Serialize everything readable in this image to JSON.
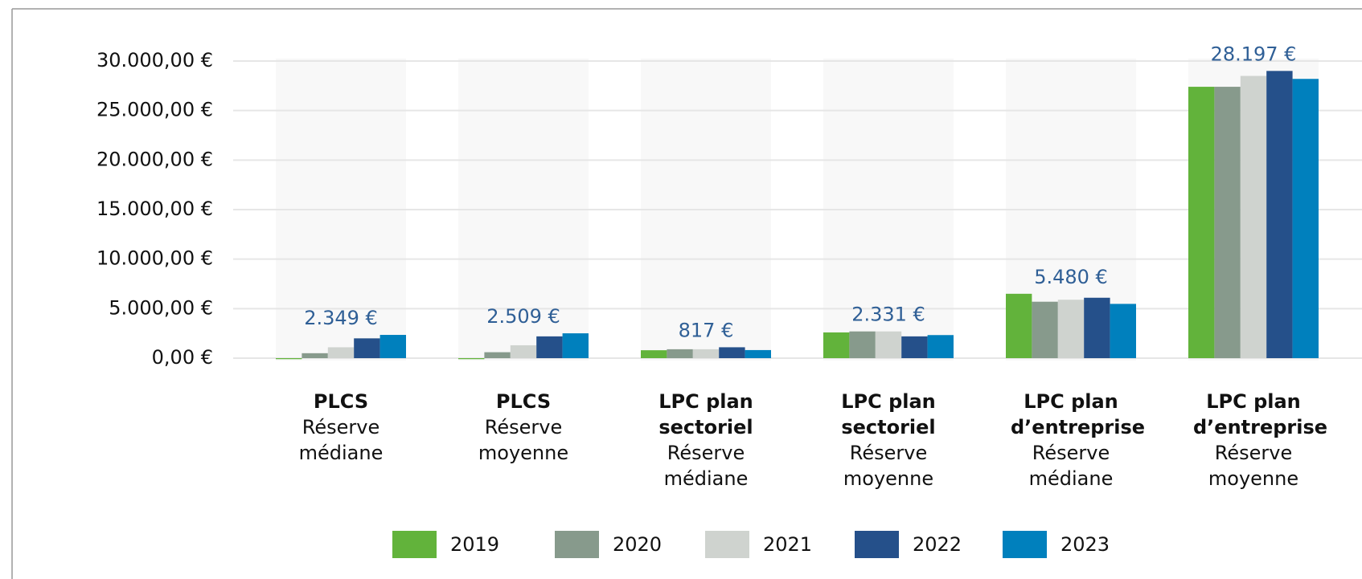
{
  "chart_data": {
    "type": "bar",
    "categories": [
      {
        "title": "PLCS",
        "subtitle": "Réserve médiane"
      },
      {
        "title": "PLCS",
        "subtitle": "Réserve moyenne"
      },
      {
        "title": "LPC plan sectoriel",
        "subtitle": "Réserve médiane"
      },
      {
        "title": "LPC plan sectoriel",
        "subtitle": "Réserve moyenne"
      },
      {
        "title": "LPC plan d’entreprise",
        "subtitle": "Réserve médiane"
      },
      {
        "title": "LPC plan d’entreprise",
        "subtitle": "Réserve moyenne"
      }
    ],
    "series": [
      {
        "name": "2019",
        "color": "#62b33b",
        "values": [
          -100,
          -100,
          800,
          2600,
          6500,
          27400
        ]
      },
      {
        "name": "2020",
        "color": "#879a8c",
        "values": [
          500,
          600,
          900,
          2700,
          5700,
          27400
        ]
      },
      {
        "name": "2021",
        "color": "#cfd3cf",
        "values": [
          1100,
          1300,
          900,
          2700,
          5900,
          28500
        ]
      },
      {
        "name": "2022",
        "color": "#25508a",
        "values": [
          2000,
          2200,
          1100,
          2200,
          6100,
          29000
        ]
      },
      {
        "name": "2023",
        "color": "#0080bd",
        "values": [
          2349,
          2509,
          817,
          2331,
          5480,
          28197
        ],
        "value_labels": [
          "2.349 €",
          "2.509 €",
          "817 €",
          "2.331 €",
          "5.480 €",
          "28.197 €"
        ]
      }
    ],
    "ylim": [
      0,
      30000
    ],
    "yticks": [
      {
        "value": 0,
        "label": "0,00 €"
      },
      {
        "value": 5000,
        "label": "5.000,00 €"
      },
      {
        "value": 10000,
        "label": "10.000,00 €"
      },
      {
        "value": 15000,
        "label": "15.000,00 €"
      },
      {
        "value": 20000,
        "label": "20.000,00 €"
      },
      {
        "value": 25000,
        "label": "25.000,00 €"
      },
      {
        "value": 30000,
        "label": "30.000,00 €"
      }
    ],
    "grid": true,
    "legend": "bottom"
  }
}
